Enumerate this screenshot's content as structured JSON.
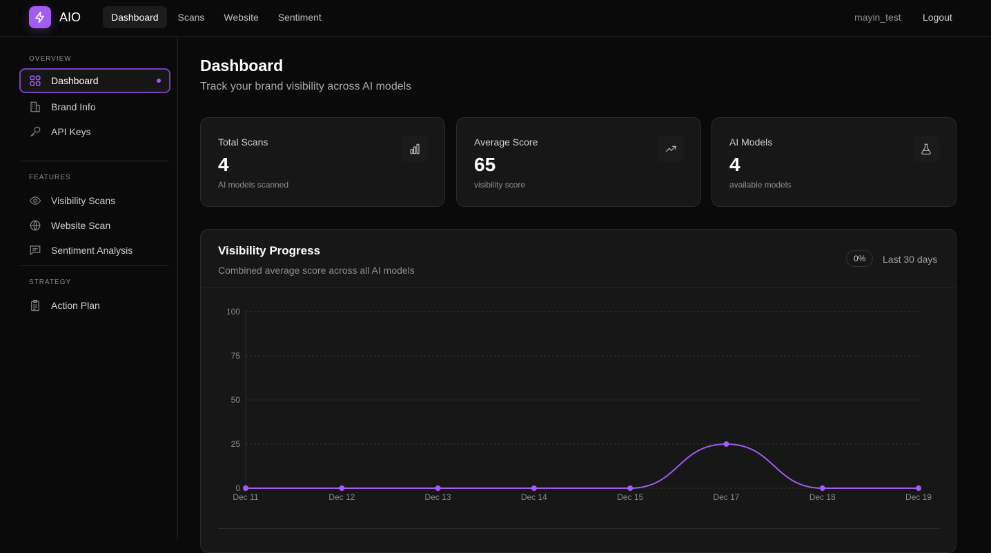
{
  "app": {
    "name": "AIO",
    "user": "mayin_test",
    "logout": "Logout"
  },
  "nav": [
    {
      "label": "Dashboard"
    },
    {
      "label": "Scans"
    },
    {
      "label": "Website"
    },
    {
      "label": "Sentiment"
    }
  ],
  "sidebar": {
    "sections": [
      {
        "title": "OVERVIEW"
      },
      {
        "title": "FEATURES"
      },
      {
        "title": "STRATEGY"
      }
    ],
    "items": [
      {
        "label": "Dashboard"
      },
      {
        "label": "Brand Info"
      },
      {
        "label": "API Keys"
      },
      {
        "label": "Visibility Scans"
      },
      {
        "label": "Website Scan"
      },
      {
        "label": "Sentiment Analysis"
      },
      {
        "label": "Action Plan"
      }
    ]
  },
  "page": {
    "title": "Dashboard",
    "subtitle": "Track your brand visibility across AI models"
  },
  "stats": [
    {
      "label": "Total Scans",
      "value": "4",
      "desc": "AI models scanned",
      "icon": "bar-chart-icon"
    },
    {
      "label": "Average Score",
      "value": "65",
      "desc": "visibility score",
      "icon": "trending-up-icon"
    },
    {
      "label": "AI Models",
      "value": "4",
      "desc": "available models",
      "icon": "flask-icon"
    }
  ],
  "panel": {
    "title": "Visibility Progress",
    "subtitle": "Combined average score across all AI models",
    "badge": "0%",
    "range": "Last 30 days"
  },
  "colors": {
    "accent": "#a25cf2"
  },
  "chart_data": {
    "type": "line",
    "title": "Visibility Progress",
    "categories": [
      "Dec 11",
      "Dec 12",
      "Dec 13",
      "Dec 14",
      "Dec 15",
      "Dec 17",
      "Dec 18",
      "Dec 19"
    ],
    "values": [
      0,
      0,
      0,
      0,
      0,
      25,
      0,
      0
    ],
    "yticks": [
      "0",
      "25",
      "50",
      "75",
      "100"
    ],
    "ylim": [
      0,
      100
    ],
    "grid": true
  }
}
